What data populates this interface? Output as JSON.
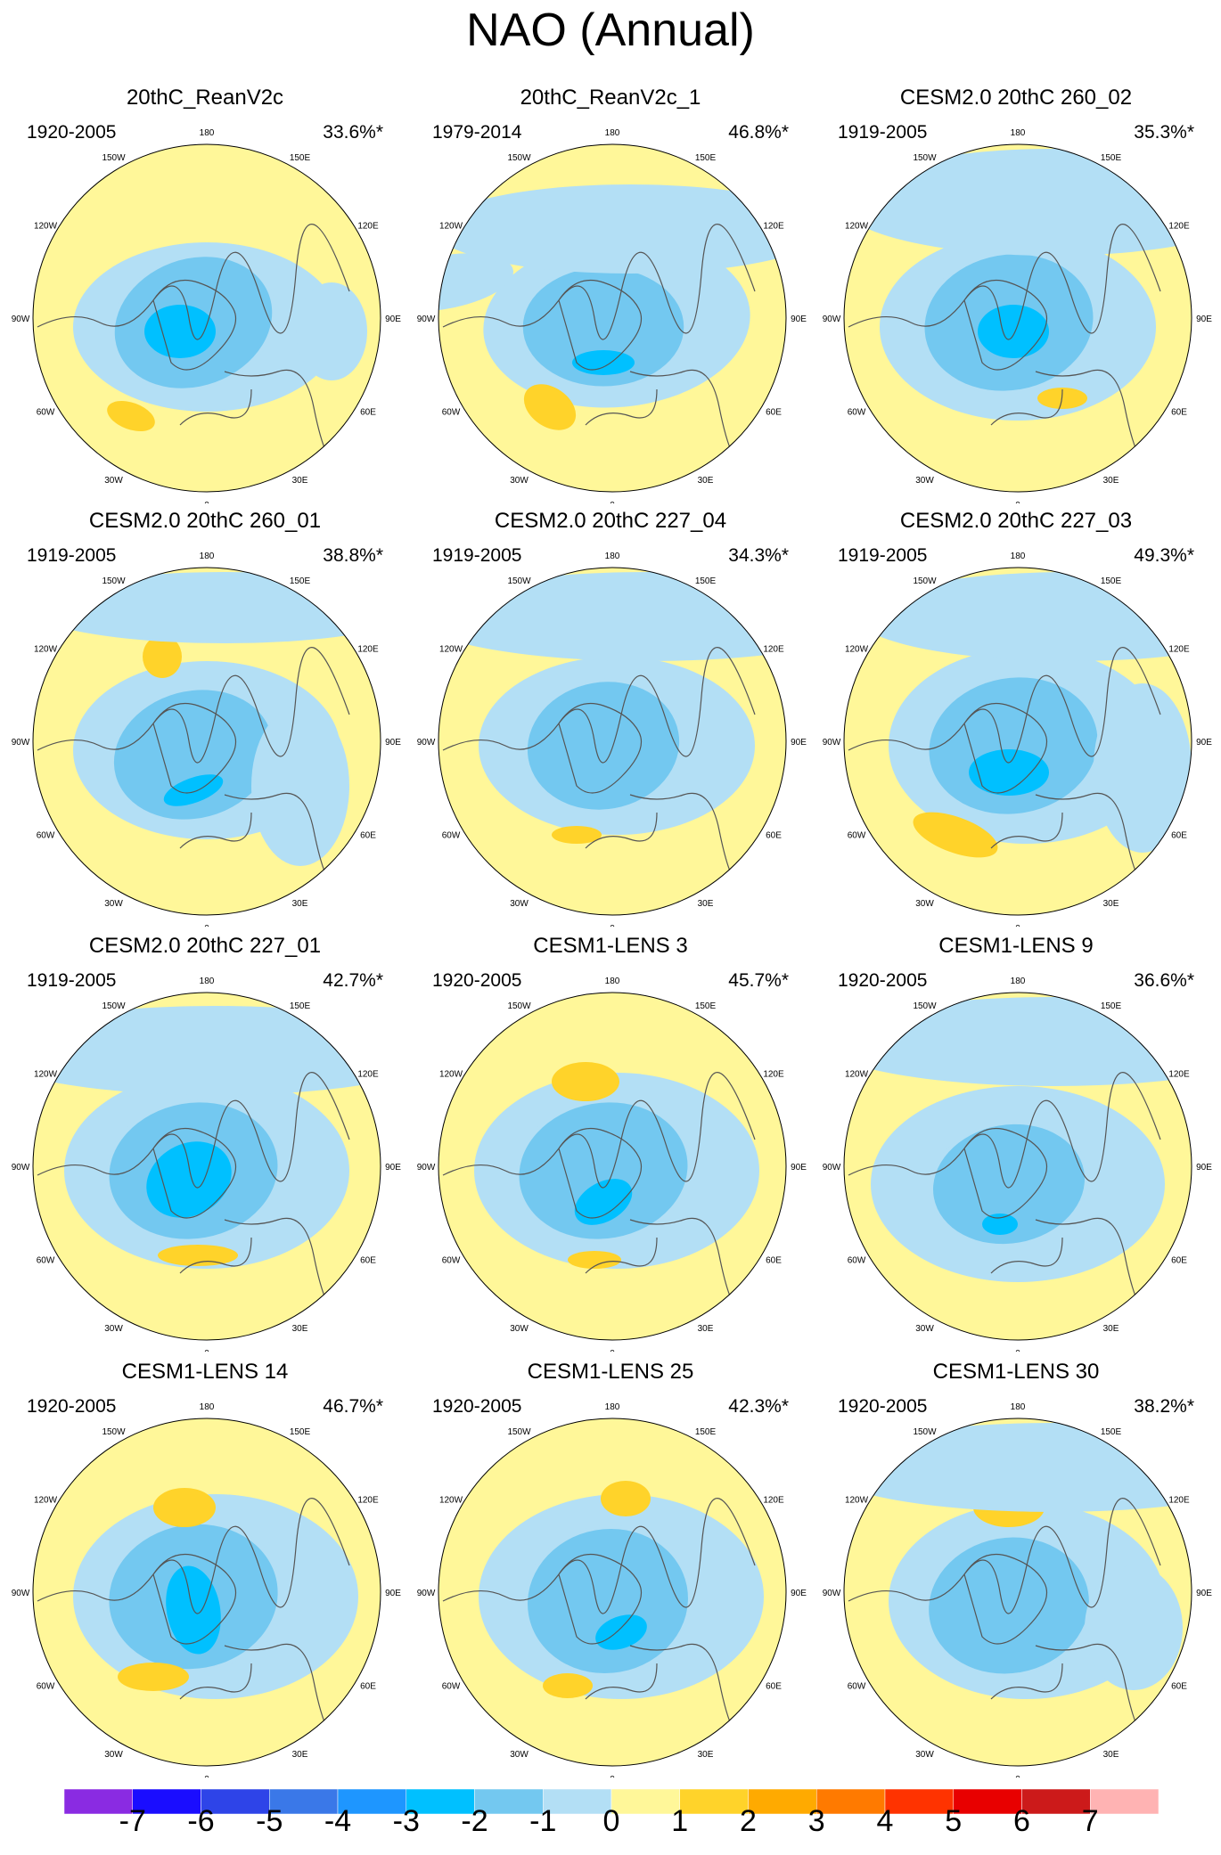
{
  "title": "NAO (Annual)",
  "lon_labels": [
    "180",
    "150E",
    "120E",
    "90E",
    "60E",
    "30E",
    "0",
    "30W",
    "60W",
    "90W",
    "120W",
    "150W"
  ],
  "panels": [
    {
      "title": "20thC_ReanV2c",
      "period": "1920-2005",
      "pct": "33.6%*"
    },
    {
      "title": "20thC_ReanV2c_1",
      "period": "1979-2014",
      "pct": "46.8%*"
    },
    {
      "title": "CESM2.0 20thC 260_02",
      "period": "1919-2005",
      "pct": "35.3%*"
    },
    {
      "title": "CESM2.0 20thC 260_01",
      "period": "1919-2005",
      "pct": "38.8%*"
    },
    {
      "title": "CESM2.0 20thC 227_04",
      "period": "1919-2005",
      "pct": "34.3%*"
    },
    {
      "title": "CESM2.0 20thC 227_03",
      "period": "1919-2005",
      "pct": "49.3%*"
    },
    {
      "title": "CESM2.0 20thC 227_01",
      "period": "1919-2005",
      "pct": "42.7%*"
    },
    {
      "title": "CESM1-LENS 3",
      "period": "1920-2005",
      "pct": "45.7%*"
    },
    {
      "title": "CESM1-LENS 9",
      "period": "1920-2005",
      "pct": "36.6%*"
    },
    {
      "title": "CESM1-LENS 14",
      "period": "1920-2005",
      "pct": "46.7%*"
    },
    {
      "title": "CESM1-LENS 25",
      "period": "1920-2005",
      "pct": "42.3%*"
    },
    {
      "title": "CESM1-LENS 30",
      "period": "1920-2005",
      "pct": "38.2%*"
    }
  ],
  "colorbar": {
    "labels": [
      "-7",
      "-6",
      "-5",
      "-4",
      "-3",
      "-2",
      "-1",
      "0",
      "1",
      "2",
      "3",
      "4",
      "5",
      "6",
      "7"
    ],
    "colors": [
      "#8a2be2",
      "#1a0dff",
      "#2e44e8",
      "#3a78e8",
      "#1e96ff",
      "#00c0ff",
      "#73c8f0",
      "#b3dff5",
      "#fff799",
      "#ffd32a",
      "#ffaa00",
      "#ff7a00",
      "#ff3300",
      "#e80000",
      "#cc1a1a",
      "#ffb3b3"
    ]
  }
}
